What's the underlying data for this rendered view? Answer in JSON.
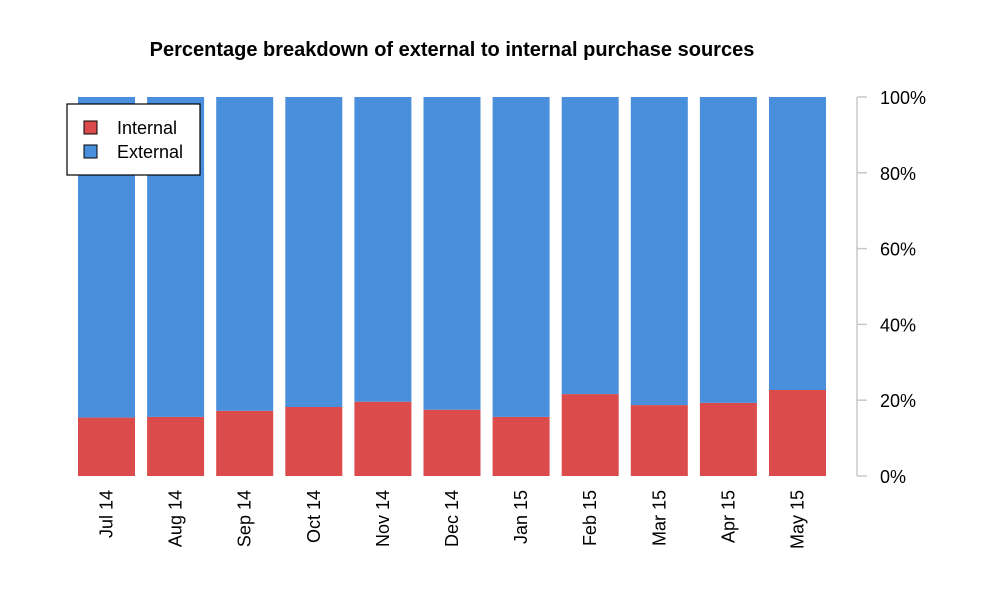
{
  "chart_data": {
    "type": "bar",
    "stacked": true,
    "percent": true,
    "title": "Percentage breakdown of external to internal purchase sources",
    "xlabel": "",
    "ylabel": "",
    "categories": [
      "Jul 14",
      "Aug 14",
      "Sep 14",
      "Oct 14",
      "Nov 14",
      "Dec 14",
      "Jan 15",
      "Feb 15",
      "Mar 15",
      "Apr 15",
      "May 15"
    ],
    "series": [
      {
        "name": "Internal",
        "color": "#dc4b4b",
        "values": [
          15.4,
          15.6,
          17.2,
          18.2,
          19.6,
          17.5,
          15.6,
          21.6,
          18.7,
          19.3,
          22.7
        ]
      },
      {
        "name": "External",
        "color": "#4a8fdc",
        "values": [
          84.6,
          84.4,
          82.8,
          81.8,
          80.4,
          82.5,
          84.4,
          78.4,
          81.3,
          80.7,
          77.3
        ]
      }
    ],
    "ylim": [
      0,
      100
    ],
    "yticks": [
      0,
      20,
      40,
      60,
      80,
      100
    ],
    "ytick_labels": [
      "0%",
      "20%",
      "40%",
      "60%",
      "80%",
      "100%"
    ],
    "y_axis_side": "right",
    "x_label_rotation": "vertical",
    "grid": false,
    "legend": {
      "position": "top-left",
      "entries": [
        "Internal",
        "External"
      ]
    },
    "axis_color": "#c8c8c8"
  }
}
